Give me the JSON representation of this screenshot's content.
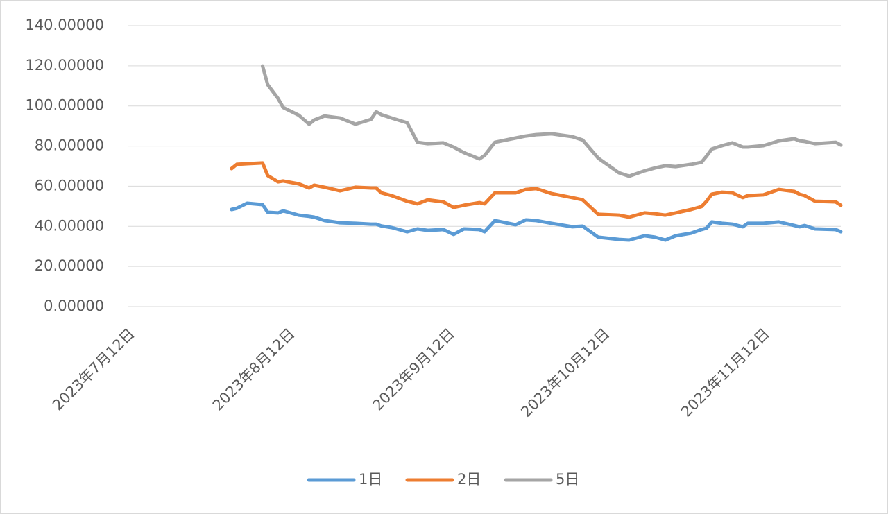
{
  "chart_data": {
    "type": "line",
    "x": [
      "2023-08-01",
      "2023-08-02",
      "2023-08-04",
      "2023-08-07",
      "2023-08-08",
      "2023-08-10",
      "2023-08-11",
      "2023-08-14",
      "2023-08-16",
      "2023-08-17",
      "2023-08-19",
      "2023-08-22",
      "2023-08-25",
      "2023-08-28",
      "2023-08-29",
      "2023-08-30",
      "2023-09-01",
      "2023-09-04",
      "2023-09-06",
      "2023-09-08",
      "2023-09-11",
      "2023-09-13",
      "2023-09-15",
      "2023-09-18",
      "2023-09-19",
      "2023-09-21",
      "2023-09-25",
      "2023-09-27",
      "2023-09-29",
      "2023-10-02",
      "2023-10-06",
      "2023-10-08",
      "2023-10-11",
      "2023-10-15",
      "2023-10-17",
      "2023-10-20",
      "2023-10-22",
      "2023-10-24",
      "2023-10-26",
      "2023-10-29",
      "2023-10-31",
      "2023-11-01",
      "2023-11-02",
      "2023-11-04",
      "2023-11-06",
      "2023-11-08",
      "2023-11-09",
      "2023-11-12",
      "2023-11-15",
      "2023-11-18",
      "2023-11-19",
      "2023-11-20",
      "2023-11-22",
      "2023-11-26",
      "2023-11-27"
    ],
    "series": [
      {
        "name": "1日",
        "color": "#5b9bd5",
        "values": [
          48.4,
          49,
          51.5,
          50.8,
          47,
          46.7,
          47.7,
          45.6,
          45,
          44.6,
          42.9,
          41.8,
          41.5,
          41.1,
          41.1,
          40.2,
          39.4,
          37.3,
          38.7,
          38,
          38.4,
          36,
          38.7,
          38.4,
          37.3,
          42.9,
          40.8,
          43.2,
          42.9,
          41.5,
          39.8,
          40.1,
          34.6,
          33.5,
          33.2,
          35.3,
          34.6,
          33.2,
          35.3,
          36.6,
          38.4,
          39.1,
          42.2,
          41.5,
          41.1,
          39.8,
          41.5,
          41.5,
          42.2,
          40.4,
          39.8,
          40.4,
          38.7,
          38.4,
          37.3
        ]
      },
      {
        "name": "2日",
        "color": "#ed7d31",
        "values": [
          68.8,
          70.9,
          71.2,
          71.6,
          65.3,
          62.2,
          62.6,
          61.2,
          59.1,
          60.5,
          59.5,
          57.7,
          59.5,
          59.1,
          59.1,
          56.7,
          55.3,
          52.5,
          51.2,
          53.2,
          52.2,
          49.4,
          50.5,
          51.8,
          51.2,
          56.7,
          56.7,
          58.4,
          58.8,
          56.3,
          54.3,
          53.2,
          46,
          45.6,
          44.6,
          46.7,
          46.3,
          45.6,
          46.7,
          48.4,
          49.8,
          52.5,
          56,
          57,
          56.7,
          54.3,
          55.3,
          55.7,
          58.4,
          57.4,
          56,
          55.3,
          52.5,
          52.2,
          50.5
        ]
      },
      {
        "name": "5日",
        "color": "#a5a5a5",
        "values": [
          null,
          null,
          null,
          119.9,
          110.6,
          103.7,
          99.2,
          95.4,
          90.9,
          93,
          95,
          94,
          90.9,
          93.3,
          97.1,
          95.7,
          94,
          91.6,
          81.9,
          81.2,
          81.6,
          79.5,
          76.7,
          73.6,
          75.3,
          81.9,
          84,
          85,
          85.7,
          86.1,
          84.7,
          83,
          74,
          66.7,
          65,
          67.7,
          69.1,
          70.2,
          69.8,
          70.9,
          71.9,
          75,
          78.5,
          80.2,
          81.6,
          79.5,
          79.5,
          80.2,
          82.6,
          83.7,
          82.6,
          82.3,
          81.2,
          81.9,
          80.5
        ]
      }
    ],
    "xlim": [
      "2023-07-12",
      "2023-11-27"
    ],
    "xticks": [
      {
        "value": "2023-07-12",
        "label": "2023年7月12日"
      },
      {
        "value": "2023-08-12",
        "label": "2023年8月12日"
      },
      {
        "value": "2023-09-12",
        "label": "2023年9月12日"
      },
      {
        "value": "2023-10-12",
        "label": "2023年10月12日"
      },
      {
        "value": "2023-11-12",
        "label": "2023年11月12日"
      }
    ],
    "ylim": [
      0,
      140
    ],
    "yticks": [
      {
        "value": 0,
        "label": "0.00000"
      },
      {
        "value": 20,
        "label": "20.00000"
      },
      {
        "value": 40,
        "label": "40.00000"
      },
      {
        "value": 60,
        "label": "60.00000"
      },
      {
        "value": 80,
        "label": "80.00000"
      },
      {
        "value": 100,
        "label": "100.00000"
      },
      {
        "value": 120,
        "label": "120.00000"
      },
      {
        "value": 140,
        "label": "140.00000"
      }
    ],
    "grid": true,
    "legend": "bottom"
  }
}
